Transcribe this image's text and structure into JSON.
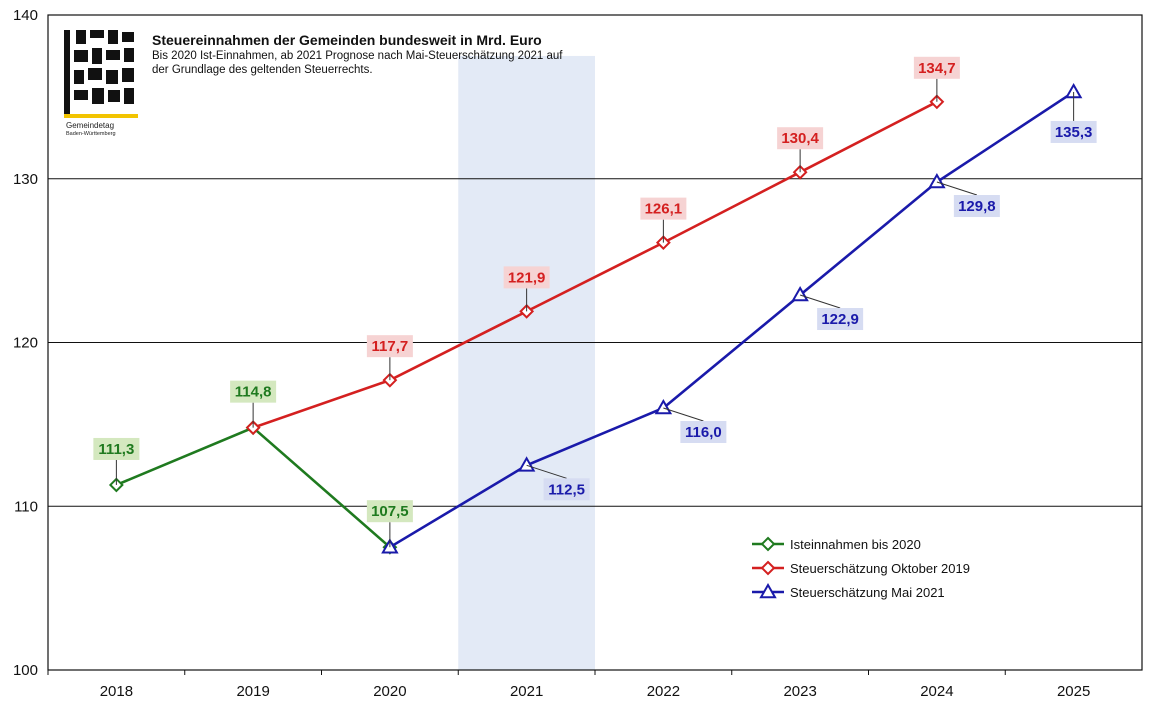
{
  "chart_data": {
    "type": "line",
    "title": "Steuereinnahmen der Gemeinden bundesweit in Mrd. Euro",
    "subtitle_lines": [
      "Bis 2020 Ist-Einnahmen, ab 2021 Prognose nach Mai-Steuerschätzung 2021 auf",
      "der Grundlage des geltenden Steuerrechts."
    ],
    "categories": [
      "2018",
      "2019",
      "2020",
      "2021",
      "2022",
      "2023",
      "2024",
      "2025"
    ],
    "y_ticks": [
      "100",
      "110",
      "120",
      "130",
      "140"
    ],
    "ylim": [
      100,
      140
    ],
    "highlight_category": "2021",
    "grid": true,
    "legend_position": "lower-right",
    "series": [
      {
        "name": "Isteinnahmen bis 2020",
        "color": "#1f7a1f",
        "label_bg": "#d4e8bf",
        "marker": "diamond",
        "points": [
          {
            "x": "2018",
            "y": 111.3,
            "label": "111,3"
          },
          {
            "x": "2019",
            "y": 114.8,
            "label": "114,8"
          },
          {
            "x": "2020",
            "y": 107.5,
            "label": "107,5"
          }
        ]
      },
      {
        "name": "Steuerschätzung Oktober 2019",
        "color": "#d42020",
        "label_bg": "#f6d3d3",
        "marker": "diamond",
        "points": [
          {
            "x": "2019",
            "y": 114.8,
            "label": null
          },
          {
            "x": "2020",
            "y": 117.7,
            "label": "117,7"
          },
          {
            "x": "2021",
            "y": 121.9,
            "label": "121,9"
          },
          {
            "x": "2022",
            "y": 126.1,
            "label": "126,1"
          },
          {
            "x": "2023",
            "y": 130.4,
            "label": "130,4"
          },
          {
            "x": "2024",
            "y": 134.7,
            "label": "134,7"
          }
        ]
      },
      {
        "name": "Steuerschätzung Mai 2021",
        "color": "#1a1aaa",
        "label_bg": "#d6dcf2",
        "marker": "triangle",
        "points": [
          {
            "x": "2020",
            "y": 107.5,
            "label": null
          },
          {
            "x": "2021",
            "y": 112.5,
            "label": "112,5"
          },
          {
            "x": "2022",
            "y": 116.0,
            "label": "116,0"
          },
          {
            "x": "2023",
            "y": 122.9,
            "label": "122,9"
          },
          {
            "x": "2024",
            "y": 129.8,
            "label": "129,8"
          },
          {
            "x": "2025",
            "y": 135.3,
            "label": "135,3"
          }
        ]
      }
    ]
  },
  "logo": {
    "caption": "Gemeindetag",
    "caption_small": "Baden-Württemberg",
    "colors": {
      "dark": "#111111",
      "accent": "#f2c400"
    }
  }
}
